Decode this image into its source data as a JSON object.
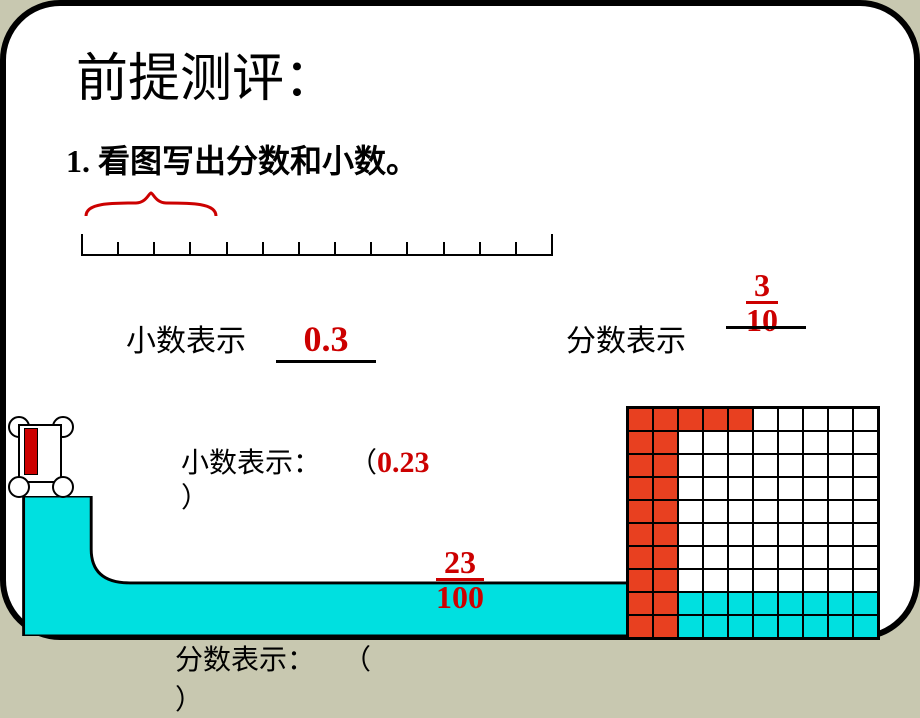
{
  "title": "前提测评：",
  "question1": "1. 看图写出分数和小数。",
  "row1": {
    "decimal_label": "小数表示",
    "decimal_value": "0.3",
    "fraction_label": "分数表示",
    "fraction_num": "3",
    "fraction_den": "10"
  },
  "row2": {
    "decimal_label": "小数表示：",
    "decimal_value": "0.23",
    "open_paren": "（",
    "close_paren": "）",
    "fraction_label": "分数表示：",
    "fraction_num": "23",
    "fraction_den": "100"
  },
  "numberline": {
    "segments": 13,
    "highlighted_segments": 3,
    "brace_color": "#cc0000",
    "tick_color": "#000000"
  },
  "grid": {
    "rows": 10,
    "cols": 10,
    "fill_color": "#e84020",
    "cyan_color": "#00e0e0",
    "border_color": "#000000",
    "filled_cells": [
      [
        0,
        0
      ],
      [
        0,
        1
      ],
      [
        0,
        2
      ],
      [
        0,
        3
      ],
      [
        0,
        4
      ],
      [
        1,
        0
      ],
      [
        1,
        1
      ],
      [
        2,
        0
      ],
      [
        2,
        1
      ],
      [
        3,
        0
      ],
      [
        3,
        1
      ],
      [
        4,
        0
      ],
      [
        4,
        1
      ],
      [
        5,
        0
      ],
      [
        5,
        1
      ],
      [
        6,
        0
      ],
      [
        6,
        1
      ],
      [
        7,
        0
      ],
      [
        7,
        1
      ],
      [
        8,
        0
      ],
      [
        8,
        1
      ],
      [
        9,
        0
      ],
      [
        9,
        1
      ]
    ],
    "cyan_cells": [
      [
        8,
        2
      ],
      [
        8,
        3
      ],
      [
        8,
        4
      ],
      [
        8,
        5
      ],
      [
        8,
        6
      ],
      [
        8,
        7
      ],
      [
        8,
        8
      ],
      [
        8,
        9
      ],
      [
        9,
        2
      ],
      [
        9,
        3
      ],
      [
        9,
        4
      ],
      [
        9,
        5
      ],
      [
        9,
        6
      ],
      [
        9,
        7
      ],
      [
        9,
        8
      ],
      [
        9,
        9
      ]
    ]
  },
  "colors": {
    "answer_color": "#cc0000",
    "text_color": "#000000",
    "background": "#ffffff",
    "track_color": "#00e0e0",
    "page_bg": "#c8c8b0"
  }
}
